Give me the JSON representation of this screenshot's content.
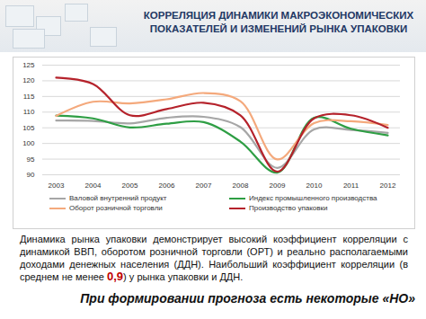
{
  "chart_data": {
    "type": "line",
    "title": [
      "КОРРЕЛЯЦИЯ ДИНАМИКИ МАКРОЭКОНОМИЧЕСКИХ",
      "ПОКАЗАТЕЛЕЙ И ИЗМЕНЕНИЙ РЫНКА УПАКОВКИ"
    ],
    "categories": [
      "2003",
      "2004",
      "2005",
      "2006",
      "2007",
      "2008",
      "2009",
      "2010",
      "2011",
      "2012"
    ],
    "series": [
      {
        "name": "Валовой внутренний продукт",
        "color": "#a6a6a6",
        "values": [
          107.3,
          107.2,
          106.4,
          108.2,
          108.5,
          105.2,
          92.2,
          104.5,
          104.3,
          103.4
        ]
      },
      {
        "name": "Индекс промышленного производства",
        "color": "#2e9e44",
        "values": [
          108.9,
          108.0,
          105.1,
          106.3,
          106.8,
          100.6,
          90.7,
          108.2,
          104.7,
          102.6
        ]
      },
      {
        "name": "Оборот розничной торговли",
        "color": "#f4a97c",
        "values": [
          108.8,
          113.3,
          112.8,
          114.1,
          116.1,
          113.5,
          94.9,
          106.5,
          107.1,
          105.9
        ]
      },
      {
        "name": "Производство упаковки",
        "color": "#b5222b",
        "values": [
          121.0,
          119.0,
          109.0,
          111.0,
          113.0,
          109.0,
          91.0,
          108.0,
          109.0,
          105.0
        ]
      }
    ],
    "ylim": [
      90,
      125
    ],
    "yticks": [
      90,
      95,
      100,
      105,
      110,
      115,
      120,
      125
    ],
    "grid": true,
    "legend": "bottom",
    "text": {
      "paragraph_before": "Динамика рынка упаковки демонстрирует высокий коэффициент корреляции с динамикой ВВП, оборотом розничной торговли (ОРТ) и реально располагаемыми доходами денежных населения (ДДН). Наибольший коэффициент корреляции (в среднем не менее ",
      "paragraph_highlight": "0,9",
      "paragraph_after": ") у рынка упаковки и ДДН.",
      "bottom_line": "При формировании прогноза есть некоторые «НО»"
    }
  }
}
